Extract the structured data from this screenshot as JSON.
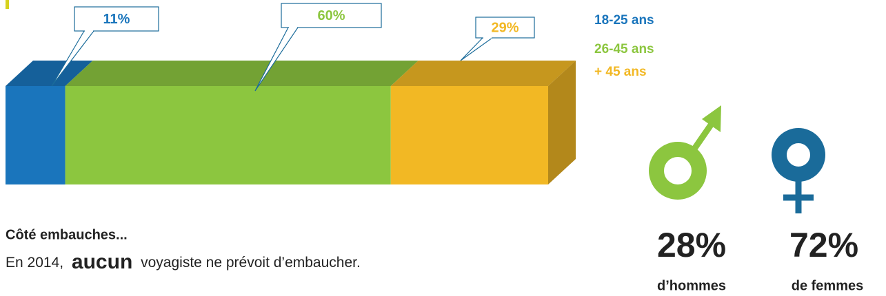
{
  "chart_data": {
    "type": "bar",
    "stacked": true,
    "orientation": "horizontal",
    "xlim": [
      0,
      100
    ],
    "series": [
      {
        "name": "18-25 ans",
        "color": "#1a75bc",
        "values": [
          11
        ],
        "value_labels": [
          "11%"
        ]
      },
      {
        "name": "26-45 ans",
        "color": "#8cc63f",
        "values": [
          60
        ],
        "value_labels": [
          "60%"
        ]
      },
      {
        "name": "+ 45 ans",
        "color": "#f2b824",
        "values": [
          29
        ],
        "value_labels": [
          "29%"
        ]
      }
    ]
  },
  "hiring": {
    "title": "Côté embauches...",
    "text_before": "En 2014,",
    "emphasis": "aucun",
    "text_after": "voyagiste ne prévoit d’embaucher."
  },
  "gender": {
    "men": {
      "value": "28%",
      "label": "d’hommes"
    },
    "women": {
      "value": "72%",
      "label": "de femmes"
    }
  }
}
